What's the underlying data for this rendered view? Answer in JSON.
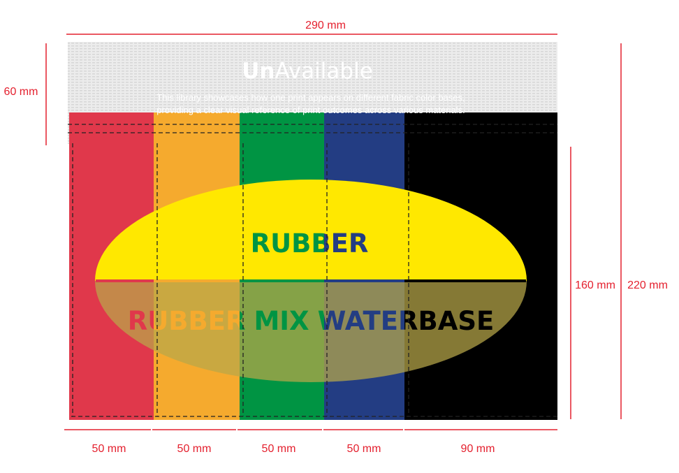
{
  "header": {
    "title_bold": "Un",
    "title_light": "Available",
    "caption_line1": "This library showcases how one print appears on different fabric color bases,",
    "caption_line2": "providing a clear visual reference of print outcomes across various materials."
  },
  "strips": [
    {
      "color": "#e0384b",
      "width_label": "50 mm"
    },
    {
      "color": "#f5aa2e",
      "width_label": "50 mm"
    },
    {
      "color": "#009443",
      "width_label": "50 mm"
    },
    {
      "color": "#233d83",
      "width_label": "50 mm"
    },
    {
      "color": "#000000",
      "width_label": "90 mm"
    }
  ],
  "print": {
    "top_label": "RUBBER",
    "bottom_words": [
      "RUBBER",
      "MIX",
      "WATER",
      "BASE"
    ],
    "top_fill": "#ffe800",
    "overlay_fill": "#b8a84a"
  },
  "dimensions": {
    "total_width": "290 mm",
    "header_height": "60 mm",
    "print_height": "160 mm",
    "total_height": "220 mm",
    "color": "#e4202e"
  }
}
